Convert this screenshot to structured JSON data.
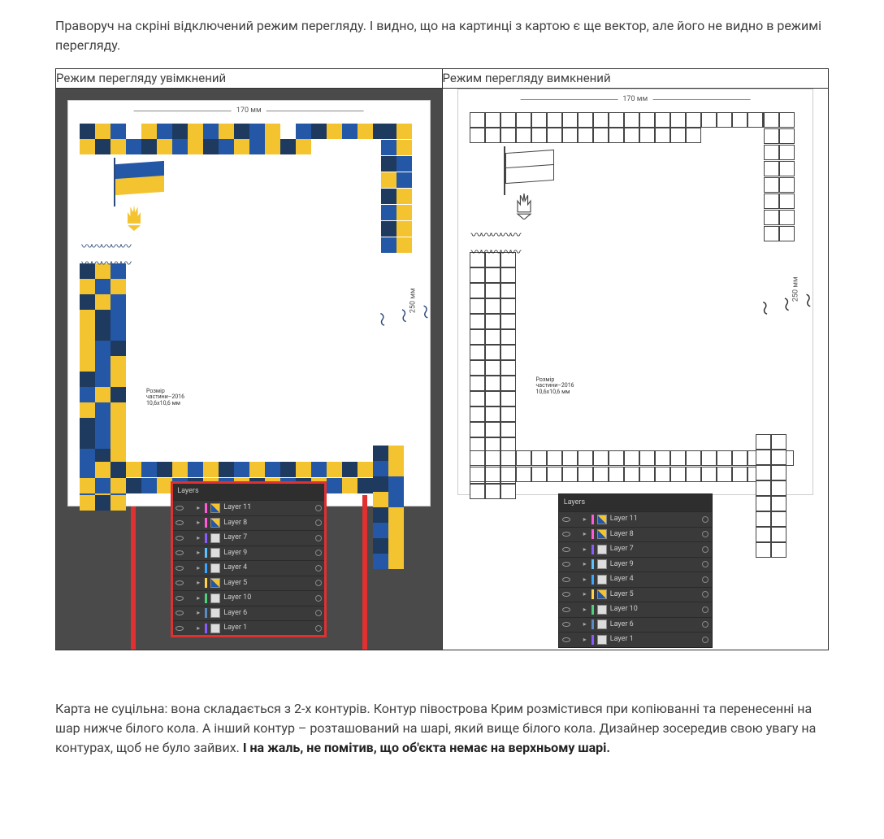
{
  "intro": "Праворуч на скріні відключений режим перегляду. І видно, що на картинці з картою є ще вектор, але його не видно в режимі перегляду.",
  "table": {
    "left_header": "Режим перегляду увімкнений",
    "right_header": "Режим перегляду вимкнений"
  },
  "artboard": {
    "width_label": "170 мм",
    "height_label": "250 мм",
    "size_note_title": "Розмір",
    "size_note_line2": "частини–2016",
    "size_note_line3": "10,6х10,6 мм"
  },
  "palette": {
    "blue_dark": "#1f3a5f",
    "blue": "#2457a6",
    "blue_light": "#5a8bc4",
    "yellow": "#f4c430",
    "yellow_dark": "#d9a520",
    "white": "#ffffff",
    "teal": "#3a7a8a"
  },
  "layers_panel": {
    "title": "Layers",
    "rows": [
      {
        "color": "#ff5ad8",
        "name": "Layer 11",
        "thumb": "img"
      },
      {
        "color": "#ff5ad8",
        "name": "Layer 8",
        "thumb": "img"
      },
      {
        "color": "#8a5cff",
        "name": "Layer 7",
        "thumb": "plain"
      },
      {
        "color": "#5cc3ff",
        "name": "Layer 9",
        "thumb": "plain"
      },
      {
        "color": "#3aa6ff",
        "name": "Layer 4",
        "thumb": "plain"
      },
      {
        "color": "#ffd24d",
        "name": "Layer 5",
        "thumb": "img"
      },
      {
        "color": "#4dd17a",
        "name": "Layer 10",
        "thumb": "plain"
      },
      {
        "color": "#5a8bc4",
        "name": "Layer 6",
        "thumb": "plain"
      },
      {
        "color": "#8a5cff",
        "name": "Layer 1",
        "thumb": "plain"
      }
    ]
  },
  "tile_colors_top": [
    "#1f3a5f",
    "#f4c430",
    "#2457a6",
    "#ffffff",
    "#f4c430",
    "#2457a6",
    "#1f3a5f",
    "#f4c430",
    "#2457a6",
    "#f4c430",
    "#1f3a5f",
    "#2457a6",
    "#f4c430",
    "#ffffff",
    "#2457a6",
    "#1f3a5f",
    "#f4c430",
    "#2457a6",
    "#f4c430",
    "#1f3a5f",
    "#2457a6",
    "#f4c430",
    "#1f3a5f",
    "#f4c430",
    "#2457a6",
    "#1f3a5f",
    "#f4c430",
    "#2457a6",
    "#f4c430",
    "#1f3a5f",
    "#2457a6",
    "#f4c430",
    "#2457a6",
    "#f4c430",
    "#1f3a5f",
    "#f4c430"
  ],
  "tile_colors_left": [
    "#1f3a5f",
    "#f4c430",
    "#2457a6",
    "#f4c430",
    "#2457a6",
    "#f4c430",
    "#1f3a5f",
    "#f4c430",
    "#2457a6",
    "#f4c430",
    "#1f3a5f",
    "#2457a6",
    "#f4c430",
    "#1f3a5f",
    "#2457a6",
    "#f4c430",
    "#2457a6",
    "#1f3a5f",
    "#f4c430",
    "#2457a6",
    "#f4c430",
    "#1f3a5f",
    "#2457a6",
    "#f4c430",
    "#2457a6",
    "#f4c430",
    "#1f3a5f",
    "#f4c430",
    "#2457a6",
    "#f4c430",
    "#1f3a5f",
    "#2457a6",
    "#f4c430",
    "#1f3a5f",
    "#2457a6",
    "#f4c430",
    "#2457a6",
    "#1f3a5f",
    "#f4c430",
    "#2457a6",
    "#f4c430",
    "#1f3a5f",
    "#2457a6",
    "#f4c430",
    "#2457a6",
    "#f4c430",
    "#1f3a5f",
    "#f4c430"
  ],
  "tile_colors_bottom": [
    "#2457a6",
    "#f4c430",
    "#1f3a5f",
    "#f4c430",
    "#2457a6",
    "#1f3a5f",
    "#f4c430",
    "#2457a6",
    "#f4c430",
    "#1f3a5f",
    "#2457a6",
    "#f4c430",
    "#2457a6",
    "#1f3a5f",
    "#f4c430",
    "#2457a6",
    "#f4c430",
    "#1f3a5f",
    "#f4c430",
    "#2457a6",
    "#1f3a5f",
    "#f4c430",
    "#2457a6",
    "#f4c430",
    "#1f3a5f",
    "#2457a6",
    "#f4c430",
    "#2457a6",
    "#1f3a5f",
    "#f4c430",
    "#2457a6",
    "#f4c430",
    "#1f3a5f",
    "#f4c430",
    "#2457a6",
    "#1f3a5f",
    "#f4c430",
    "#2457a6",
    "#f4c430",
    "#1f3a5f"
  ],
  "tile_colors_right": [
    "#1f3a5f",
    "#f4c430",
    "#2457a6",
    "#f4c430",
    "#1f3a5f",
    "#2457a6",
    "#f4c430",
    "#2457a6",
    "#1f3a5f",
    "#f4c430",
    "#2457a6",
    "#f4c430",
    "#1f3a5f",
    "#f4c430",
    "#2457a6",
    "#f4c430"
  ],
  "bottom_paragraph": {
    "p1": "Карта не суцільна: вона складається з 2-х контурів. Контур півострова Крим розмістився при копіюванні та перенесенні на шар нижче білого кола. А інший контур – розташований на шарі, який вище білого кола. Дизайнер зосередив свою увагу на контурах, щоб не було зайвих. ",
    "bold": "І на жаль, не помітив, що об'єкта немає на верхньому шарі."
  }
}
